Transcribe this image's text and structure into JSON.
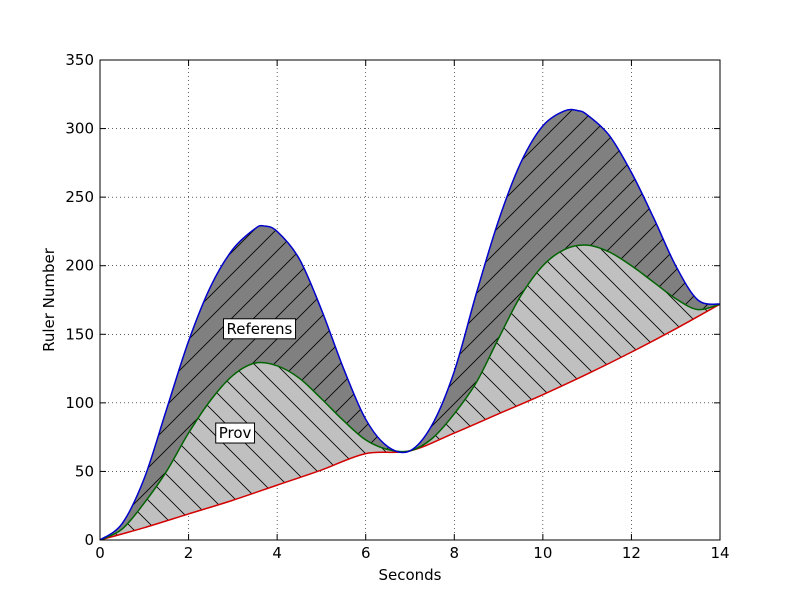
{
  "chart_data": {
    "type": "area",
    "xlabel": "Seconds",
    "ylabel": "Ruler Number",
    "xlim": [
      0,
      14
    ],
    "ylim": [
      0,
      350
    ],
    "xticks": [
      0,
      2,
      4,
      6,
      8,
      10,
      12,
      14
    ],
    "yticks": [
      0,
      50,
      100,
      150,
      200,
      250,
      300,
      350
    ],
    "xtick_labels": [
      "0",
      "2",
      "4",
      "6",
      "8",
      "10",
      "12",
      "14"
    ],
    "ytick_labels": [
      "0",
      "50",
      "100",
      "150",
      "200",
      "250",
      "300",
      "350"
    ],
    "grid": true,
    "series": [
      {
        "role": "baseline",
        "color": "#d40000",
        "points": [
          [
            0,
            0
          ],
          [
            1,
            9
          ],
          [
            2,
            19
          ],
          [
            3,
            29
          ],
          [
            4,
            40
          ],
          [
            5,
            51
          ],
          [
            6,
            63
          ],
          [
            7,
            65
          ],
          [
            8,
            78
          ],
          [
            9,
            92
          ],
          [
            10,
            106
          ],
          [
            11,
            121
          ],
          [
            12,
            137
          ],
          [
            13,
            154
          ],
          [
            14,
            172
          ]
        ]
      },
      {
        "role": "middle",
        "color": "#006400",
        "fill": "#c0c0c0",
        "points": [
          [
            0,
            0
          ],
          [
            0.5,
            8
          ],
          [
            1,
            27
          ],
          [
            1.5,
            50
          ],
          [
            2,
            78
          ],
          [
            2.5,
            102
          ],
          [
            3,
            120
          ],
          [
            3.5,
            129
          ],
          [
            4,
            127
          ],
          [
            4.5,
            118
          ],
          [
            5,
            103
          ],
          [
            5.5,
            87
          ],
          [
            6,
            73
          ],
          [
            6.5,
            66
          ],
          [
            7,
            65
          ],
          [
            7.5,
            74
          ],
          [
            8,
            92
          ],
          [
            8.5,
            115
          ],
          [
            9,
            147
          ],
          [
            9.5,
            178
          ],
          [
            10,
            200
          ],
          [
            10.5,
            212
          ],
          [
            11,
            215
          ],
          [
            11.5,
            210
          ],
          [
            12,
            200
          ],
          [
            12.5,
            188
          ],
          [
            13,
            176
          ],
          [
            13.5,
            168
          ],
          [
            14,
            172
          ]
        ]
      },
      {
        "role": "top",
        "color": "#0000cc",
        "fill": "#808080",
        "points": [
          [
            0,
            0
          ],
          [
            0.5,
            12
          ],
          [
            1,
            45
          ],
          [
            1.5,
            95
          ],
          [
            2,
            145
          ],
          [
            2.5,
            185
          ],
          [
            3,
            212
          ],
          [
            3.5,
            227
          ],
          [
            3.7,
            229
          ],
          [
            4,
            225
          ],
          [
            4.5,
            205
          ],
          [
            5,
            168
          ],
          [
            5.5,
            125
          ],
          [
            6,
            88
          ],
          [
            6.5,
            68
          ],
          [
            7,
            65
          ],
          [
            7.5,
            84
          ],
          [
            8,
            123
          ],
          [
            8.5,
            180
          ],
          [
            9,
            233
          ],
          [
            9.5,
            275
          ],
          [
            10,
            302
          ],
          [
            10.5,
            313
          ],
          [
            10.8,
            313
          ],
          [
            11,
            310
          ],
          [
            11.5,
            295
          ],
          [
            12,
            268
          ],
          [
            12.5,
            235
          ],
          [
            13,
            200
          ],
          [
            13.5,
            175
          ],
          [
            14,
            172
          ]
        ]
      }
    ],
    "annotations": [
      {
        "text": "Referens",
        "x": 3.6,
        "y": 154
      },
      {
        "text": "Prov",
        "x": 3.05,
        "y": 78
      }
    ]
  }
}
